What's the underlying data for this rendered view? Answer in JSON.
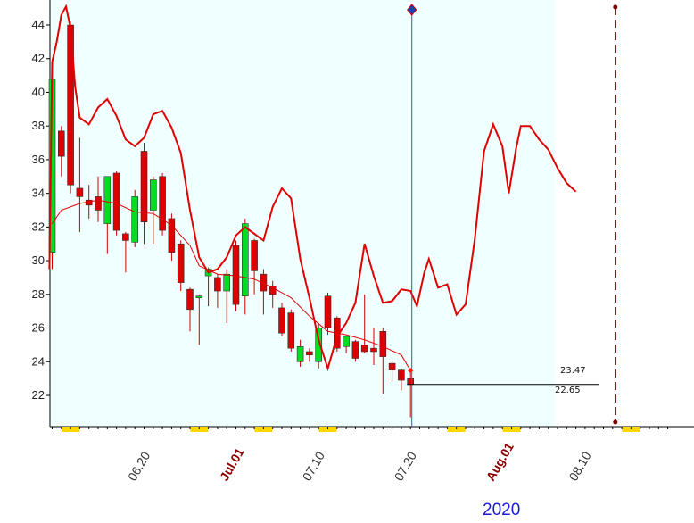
{
  "chart_data": {
    "type": "candlestick",
    "title": "",
    "xlabel": "",
    "ylabel": "",
    "year_label": "2020",
    "ylim": [
      20.3,
      45.2
    ],
    "yticks": [
      22,
      24,
      26,
      28,
      30,
      32,
      34,
      36,
      38,
      40,
      42,
      44
    ],
    "ytick_labels": [
      "22",
      "24",
      "26",
      "28",
      "30",
      "32",
      "34",
      "36",
      "38",
      "40",
      "42",
      "44"
    ],
    "xticks": [
      {
        "label": "06.20",
        "index": 9,
        "month": false
      },
      {
        "label": "Jul.01",
        "index": 19,
        "month": true
      },
      {
        "label": "07.10",
        "index": 28,
        "month": false
      },
      {
        "label": "07.20",
        "index": 38,
        "month": false
      },
      {
        "label": "Aug.01",
        "index": 48,
        "month": true
      },
      {
        "label": "08.10",
        "index": 57,
        "month": false
      }
    ],
    "candles": [
      {
        "o": 30.5,
        "h": 41.0,
        "l": 29.5,
        "c": 40.8
      },
      {
        "o": 37.7,
        "h": 38.0,
        "l": 35.0,
        "c": 36.2
      },
      {
        "o": 44.0,
        "h": 44.2,
        "l": 34.0,
        "c": 34.5
      },
      {
        "o": 34.3,
        "h": 37.3,
        "l": 31.7,
        "c": 33.8
      },
      {
        "o": 33.6,
        "h": 34.5,
        "l": 32.5,
        "c": 33.3
      },
      {
        "o": 33.8,
        "h": 35.0,
        "l": 32.3,
        "c": 33.0
      },
      {
        "o": 32.2,
        "h": 35.0,
        "l": 30.4,
        "c": 35.0
      },
      {
        "o": 35.2,
        "h": 35.3,
        "l": 31.5,
        "c": 31.8
      },
      {
        "o": 31.6,
        "h": 31.7,
        "l": 29.3,
        "c": 31.2
      },
      {
        "o": 31.1,
        "h": 34.2,
        "l": 30.8,
        "c": 33.8
      },
      {
        "o": 36.5,
        "h": 37.0,
        "l": 31.0,
        "c": 32.3
      },
      {
        "o": 33.0,
        "h": 35.0,
        "l": 31.0,
        "c": 34.8
      },
      {
        "o": 35.0,
        "h": 35.2,
        "l": 31.5,
        "c": 31.8
      },
      {
        "o": 32.5,
        "h": 32.8,
        "l": 30.0,
        "c": 30.5
      },
      {
        "o": 31.0,
        "h": 31.2,
        "l": 28.2,
        "c": 28.7
      },
      {
        "o": 28.3,
        "h": 28.4,
        "l": 25.8,
        "c": 27.1
      },
      {
        "o": 27.8,
        "h": 28.0,
        "l": 25.0,
        "c": 27.9
      },
      {
        "o": 29.1,
        "h": 29.6,
        "l": 27.3,
        "c": 29.5
      },
      {
        "o": 29.0,
        "h": 29.2,
        "l": 27.2,
        "c": 28.2
      },
      {
        "o": 28.2,
        "h": 29.5,
        "l": 26.3,
        "c": 29.2
      },
      {
        "o": 30.9,
        "h": 31.2,
        "l": 27.0,
        "c": 27.4
      },
      {
        "o": 27.9,
        "h": 32.5,
        "l": 26.8,
        "c": 32.2
      },
      {
        "o": 31.2,
        "h": 31.3,
        "l": 28.0,
        "c": 29.4
      },
      {
        "o": 29.2,
        "h": 29.5,
        "l": 26.8,
        "c": 28.2
      },
      {
        "o": 28.5,
        "h": 28.8,
        "l": 27.2,
        "c": 28.0
      },
      {
        "o": 27.2,
        "h": 27.5,
        "l": 25.5,
        "c": 25.7
      },
      {
        "o": 26.9,
        "h": 27.1,
        "l": 24.6,
        "c": 24.8
      },
      {
        "o": 24.0,
        "h": 25.3,
        "l": 23.7,
        "c": 24.9
      },
      {
        "o": 24.6,
        "h": 24.8,
        "l": 24.0,
        "c": 24.4
      },
      {
        "o": 24.0,
        "h": 26.3,
        "l": 23.6,
        "c": 26.0
      },
      {
        "o": 27.9,
        "h": 28.1,
        "l": 25.6,
        "c": 26.0
      },
      {
        "o": 26.6,
        "h": 26.7,
        "l": 24.6,
        "c": 24.8
      },
      {
        "o": 24.9,
        "h": 25.5,
        "l": 24.5,
        "c": 25.5
      },
      {
        "o": 25.2,
        "h": 25.3,
        "l": 24.0,
        "c": 24.2
      },
      {
        "o": 25.0,
        "h": 28.0,
        "l": 24.5,
        "c": 24.6
      },
      {
        "o": 24.8,
        "h": 26.0,
        "l": 23.8,
        "c": 24.6
      },
      {
        "o": 25.8,
        "h": 26.0,
        "l": 22.1,
        "c": 24.3
      },
      {
        "o": 23.9,
        "h": 24.1,
        "l": 22.8,
        "c": 23.5
      },
      {
        "o": 23.5,
        "h": 23.6,
        "l": 22.3,
        "c": 22.9
      },
      {
        "o": 23.0,
        "h": 23.4,
        "l": 20.7,
        "c": 22.65
      }
    ],
    "ma_slow": [
      [
        0,
        32.2
      ],
      [
        1,
        33.0
      ],
      [
        3,
        33.4
      ],
      [
        5,
        33.6
      ],
      [
        7,
        33.4
      ],
      [
        9,
        32.9
      ],
      [
        11,
        32.8
      ],
      [
        13,
        32.1
      ],
      [
        15,
        30.9
      ],
      [
        16,
        29.7
      ],
      [
        18,
        29.2
      ],
      [
        20,
        29.1
      ],
      [
        21,
        29.0
      ],
      [
        22,
        28.9
      ],
      [
        24,
        28.4
      ],
      [
        26,
        27.8
      ],
      [
        28,
        26.7
      ],
      [
        30,
        25.8
      ],
      [
        32,
        25.6
      ],
      [
        34,
        25.3
      ],
      [
        36,
        24.9
      ],
      [
        38,
        24.4
      ],
      [
        39,
        23.47
      ]
    ],
    "ma_fast_upper": [
      [
        -0.3,
        29.5
      ],
      [
        0,
        41.8
      ],
      [
        0.5,
        43.0
      ],
      [
        1,
        44.6
      ],
      [
        1.5,
        45.1
      ],
      [
        2,
        43.8
      ],
      [
        2.5,
        40.3
      ],
      [
        3,
        38.5
      ],
      [
        4,
        38.1
      ],
      [
        5,
        39.1
      ],
      [
        6,
        39.6
      ],
      [
        7,
        38.6
      ],
      [
        8,
        37.2
      ],
      [
        9,
        36.8
      ],
      [
        10,
        37.3
      ],
      [
        11,
        38.7
      ],
      [
        12,
        38.9
      ],
      [
        13,
        37.9
      ],
      [
        14,
        36.4
      ],
      [
        15,
        33.0
      ],
      [
        16,
        30.2
      ],
      [
        17,
        29.3
      ],
      [
        18,
        29.5
      ],
      [
        19,
        30.2
      ],
      [
        20,
        31.5
      ],
      [
        21,
        32.0
      ],
      [
        22,
        31.6
      ],
      [
        23,
        31.2
      ],
      [
        24,
        33.2
      ],
      [
        25,
        34.3
      ],
      [
        26,
        33.7
      ],
      [
        27,
        30.1
      ],
      [
        28,
        27.8
      ],
      [
        29,
        25.3
      ],
      [
        30,
        23.6
      ],
      [
        31,
        25.5
      ],
      [
        32,
        26.3
      ],
      [
        33,
        27.5
      ],
      [
        34,
        31.0
      ],
      [
        35,
        29.1
      ],
      [
        36,
        27.5
      ],
      [
        37,
        27.6
      ],
      [
        38,
        28.3
      ],
      [
        39,
        28.2
      ],
      [
        39.7,
        27.3
      ],
      [
        40.5,
        29.3
      ],
      [
        41,
        30.1
      ],
      [
        42,
        28.4
      ],
      [
        43,
        28.6
      ],
      [
        44,
        26.8
      ],
      [
        45,
        27.4
      ],
      [
        46,
        31.3
      ],
      [
        47,
        36.5
      ],
      [
        48,
        38.1
      ],
      [
        49,
        36.8
      ],
      [
        49.7,
        34.0
      ],
      [
        50.5,
        36.7
      ],
      [
        51,
        38.0
      ],
      [
        52,
        38.0
      ],
      [
        53,
        37.2
      ],
      [
        54,
        36.6
      ],
      [
        55,
        35.5
      ],
      [
        56,
        34.6
      ],
      [
        57,
        34.1
      ]
    ],
    "current_close_label": "23.47",
    "last_price_label": "22.65",
    "colors": {
      "up_body": "#00dd22",
      "down_body": "#dd0000",
      "ma_line": "#e00000",
      "plot_bg": "#f0ffff",
      "marker_line": "#007ba7",
      "future_marker": "#7a0000",
      "tick_flag": "#ffd700"
    },
    "grid": false,
    "legend": "none"
  }
}
